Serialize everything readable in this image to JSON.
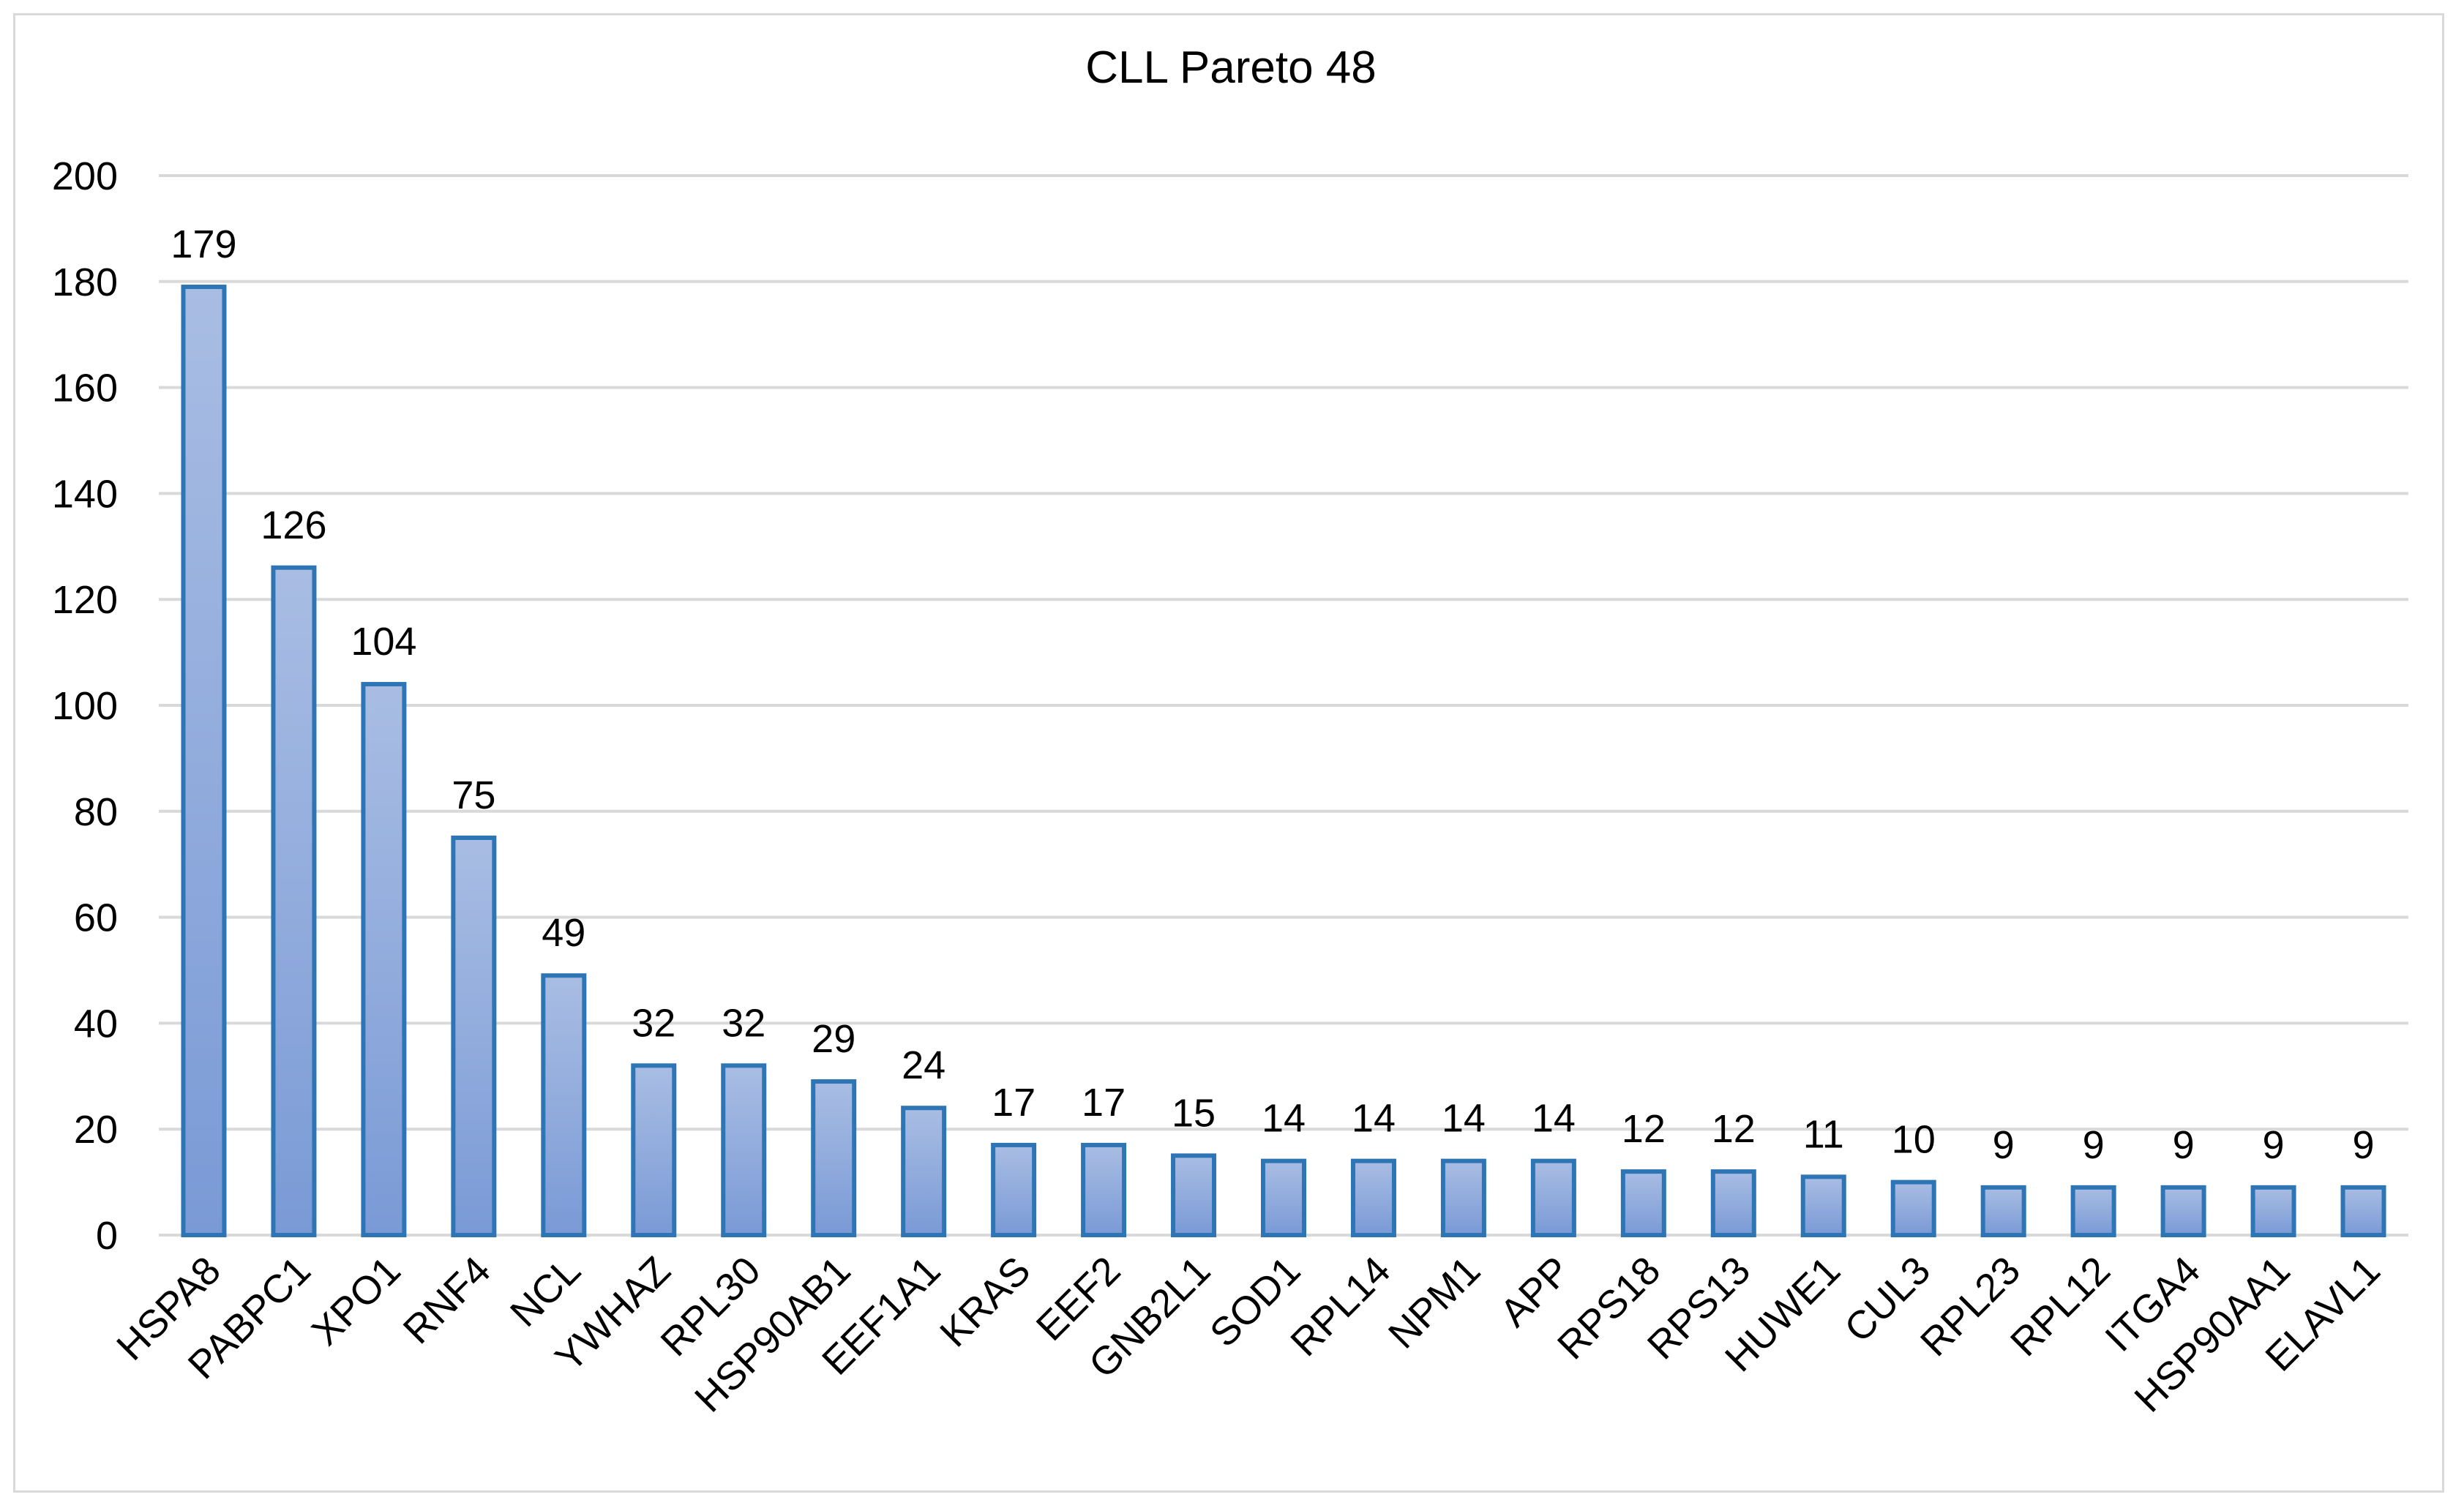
{
  "colors": {
    "bar_fill_top": "#a9bde3",
    "bar_fill_bottom": "#7a9ad6",
    "bar_stroke": "#2e75b6",
    "grid": "#d9d9d9",
    "text": "#000000"
  },
  "chart_data": {
    "type": "bar",
    "title": "CLL Pareto 48",
    "xlabel": "",
    "ylabel": "",
    "ylim": [
      0,
      200
    ],
    "yticks": [
      0,
      20,
      40,
      60,
      80,
      100,
      120,
      140,
      160,
      180,
      200
    ],
    "grid": true,
    "legend": "none",
    "categories": [
      "HSPA8",
      "PABPC1",
      "XPO1",
      "RNF4",
      "NCL",
      "YWHAZ",
      "RPL30",
      "HSP90AB1",
      "EEF1A1",
      "KRAS",
      "EEF2",
      "GNB2L1",
      "SOD1",
      "RPL14",
      "NPM1",
      "APP",
      "RPS18",
      "RPS13",
      "HUWE1",
      "CUL3",
      "RPL23",
      "RPL12",
      "ITGA4",
      "HSP90AA1",
      "ELAVL1"
    ],
    "values": [
      179,
      126,
      104,
      75,
      49,
      32,
      32,
      29,
      24,
      17,
      17,
      15,
      14,
      14,
      14,
      14,
      12,
      12,
      11,
      10,
      9,
      9,
      9,
      9,
      9
    ]
  }
}
